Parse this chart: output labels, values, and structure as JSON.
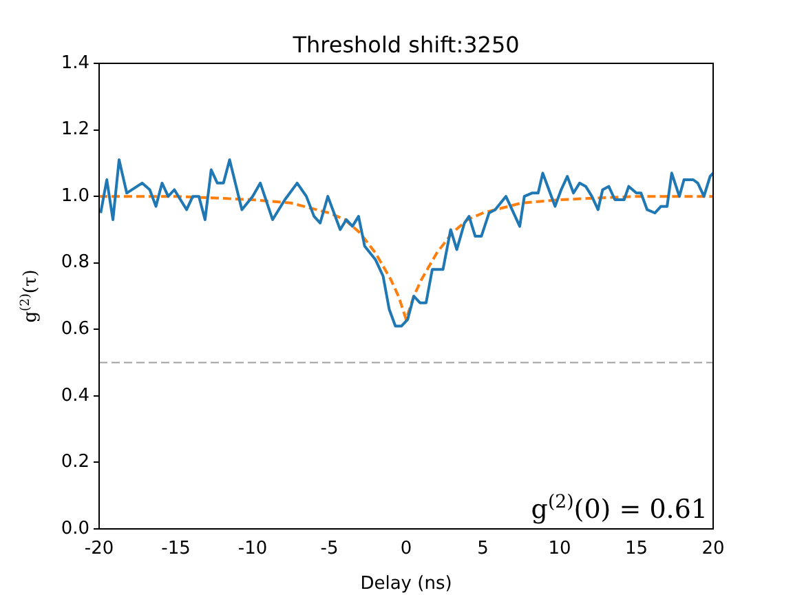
{
  "chart_data": {
    "type": "line",
    "title": "Threshold shift:3250",
    "xlabel": "Delay (ns)",
    "ylabel": "g$^{(2)}$(τ)",
    "series": [
      {
        "color": "#1f77b4",
        "line_style": "solid",
        "x": [
          -19.9,
          -19.5,
          -19.1,
          -18.7,
          -18.2,
          -17.2,
          -16.7,
          -16.3,
          -15.9,
          -15.5,
          -15.1,
          -14.3,
          -13.9,
          -13.5,
          -13.1,
          -12.7,
          -12.3,
          -11.9,
          -11.5,
          -10.7,
          -10.0,
          -9.5,
          -8.7,
          -7.9,
          -7.1,
          -6.5,
          -6.0,
          -5.6,
          -5.1,
          -4.7,
          -4.3,
          -3.9,
          -3.5,
          -3.1,
          -2.7,
          -2.0,
          -1.5,
          -1.1,
          -0.7,
          -0.3,
          0.1,
          0.5,
          0.9,
          1.3,
          1.7,
          2.4,
          2.9,
          3.3,
          3.8,
          4.1,
          4.5,
          4.9,
          5.4,
          5.8,
          6.5,
          6.9,
          7.4,
          7.7,
          8.2,
          8.6,
          8.9,
          9.3,
          9.7,
          10.1,
          10.5,
          10.9,
          11.3,
          11.7,
          12.1,
          12.5,
          12.8,
          13.2,
          13.6,
          14.2,
          14.5,
          15.0,
          15.3,
          15.7,
          16.2,
          16.6,
          17.0,
          17.3,
          17.8,
          18.1,
          18.7,
          19.0,
          19.4,
          19.8,
          20.0
        ],
        "values": [
          0.95,
          1.05,
          0.93,
          1.11,
          1.01,
          1.04,
          1.02,
          0.97,
          1.04,
          1.0,
          1.02,
          0.96,
          1.0,
          1.0,
          0.93,
          1.08,
          1.04,
          1.04,
          1.11,
          0.96,
          1.0,
          1.04,
          0.93,
          0.99,
          1.04,
          1.0,
          0.94,
          0.92,
          1.0,
          0.95,
          0.9,
          0.93,
          0.91,
          0.94,
          0.85,
          0.81,
          0.76,
          0.66,
          0.61,
          0.61,
          0.63,
          0.7,
          0.68,
          0.68,
          0.78,
          0.78,
          0.9,
          0.84,
          0.92,
          0.94,
          0.88,
          0.88,
          0.95,
          0.96,
          1.0,
          0.96,
          0.91,
          1.0,
          1.01,
          1.01,
          1.07,
          1.02,
          0.97,
          1.02,
          1.06,
          1.01,
          1.04,
          1.03,
          1.0,
          0.96,
          1.02,
          1.03,
          0.99,
          0.99,
          1.03,
          1.01,
          1.01,
          0.96,
          0.95,
          0.97,
          0.97,
          1.07,
          1.0,
          1.05,
          1.05,
          1.04,
          1.0,
          1.06,
          1.07
        ]
      },
      {
        "color": "#ff7f0e",
        "line_style": "dashed",
        "x": [
          -20,
          -15,
          -10,
          -7.5,
          -5,
          -4,
          -3,
          -2,
          -1,
          -0.5,
          0,
          0.5,
          1,
          2,
          3,
          4,
          5,
          7.5,
          10,
          15,
          20
        ],
        "values": [
          1.0,
          1.0,
          0.99,
          0.98,
          0.95,
          0.93,
          0.89,
          0.83,
          0.75,
          0.7,
          0.63,
          0.7,
          0.75,
          0.83,
          0.89,
          0.93,
          0.95,
          0.98,
          0.99,
          1.0,
          1.0
        ]
      }
    ],
    "ref_lines": [
      {
        "axis": "y",
        "value": 0.5,
        "color": "#a0a0a0",
        "line_style": "dashed"
      }
    ],
    "annotations": [
      "g$^{(2)}$(0) = 0.61"
    ],
    "xlim": [
      -20,
      20
    ],
    "xticks": [
      -20,
      -15,
      -10,
      -5,
      0,
      5,
      10,
      15,
      20
    ],
    "ylim": [
      0,
      1.4
    ],
    "yticks": [
      {
        "value": 0,
        "label": "0.0"
      },
      {
        "value": 0.2,
        "label": "0.2"
      },
      {
        "value": 0.4,
        "label": "0.4"
      },
      {
        "value": 0.6,
        "label": "0.6"
      },
      {
        "value": 0.8,
        "label": "0.8"
      },
      {
        "value": 1.0,
        "label": "1.0"
      },
      {
        "value": 1.2,
        "label": "1.2"
      },
      {
        "value": 1.4,
        "label": "1.4"
      }
    ],
    "grid": false,
    "legend": false,
    "marker": "none"
  }
}
